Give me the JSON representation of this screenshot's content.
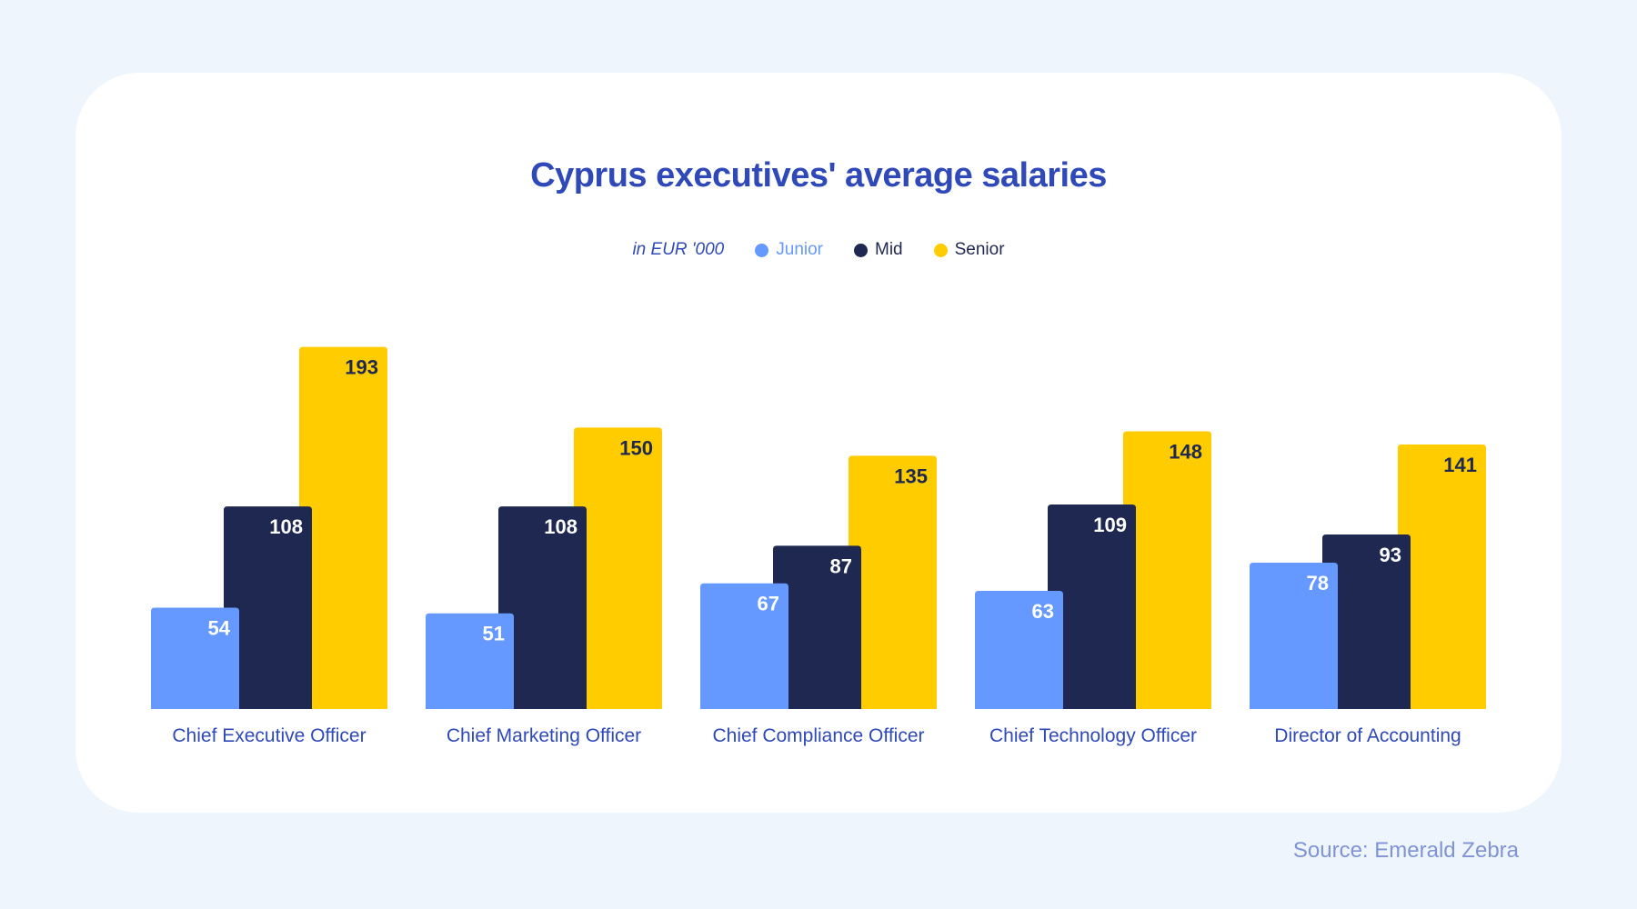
{
  "chart_data": {
    "type": "bar",
    "title": "Cyprus executives' average salaries",
    "unit_label": "in EUR '000",
    "categories": [
      "Chief Executive Officer",
      "Chief Marketing Officer",
      "Chief Compliance Officer",
      "Chief Technology Officer",
      "Director of Accounting"
    ],
    "series": [
      {
        "name": "Junior",
        "color": "#6699ff",
        "label_color": "#ffffff",
        "values": [
          54,
          51,
          67,
          63,
          78
        ]
      },
      {
        "name": "Mid",
        "color": "#1f2850",
        "label_color": "#ffffff",
        "values": [
          108,
          108,
          87,
          109,
          93
        ]
      },
      {
        "name": "Senior",
        "color": "#ffcc00",
        "label_color": "#1f2850",
        "values": [
          193,
          150,
          135,
          148,
          141
        ]
      }
    ],
    "ylim": [
      0,
      200
    ],
    "grid": false,
    "legend_placement": "top-center",
    "category_label_color": "#2f49b8"
  },
  "source": "Source: Emerald Zebra"
}
